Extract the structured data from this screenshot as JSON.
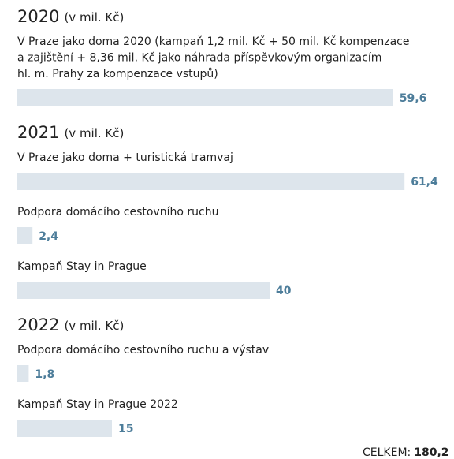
{
  "sections": [
    {
      "year": "2020",
      "unit": "(v mil. Kč)",
      "items": [
        {
          "lines": [
            "V Praze jako doma 2020 (kampaň 1,2 mil. Kč + 50 mil. Kč kompenzace",
            "a zajištění + 8,36 mil. Kč jako náhrada příspěvkovým organizacím",
            "hl. m. Prahy za kompenzace vstupů)"
          ],
          "value": 59.6,
          "value_label": "59,6"
        }
      ]
    },
    {
      "year": "2021",
      "unit": "(v mil. Kč)",
      "items": [
        {
          "lines": [
            "V Praze jako doma + turistická tramvaj"
          ],
          "value": 61.4,
          "value_label": "61,4"
        },
        {
          "lines": [
            "Podpora domácího cestovního ruchu"
          ],
          "value": 2.4,
          "value_label": "2,4"
        },
        {
          "lines": [
            "Kampaň Stay in Prague"
          ],
          "value": 40,
          "value_label": "40"
        }
      ]
    },
    {
      "year": "2022",
      "unit": "(v mil. Kč)",
      "items": [
        {
          "lines": [
            "Podpora domácího cestovního ruchu a výstav"
          ],
          "value": 1.8,
          "value_label": "1,8"
        },
        {
          "lines": [
            "Kampaň Stay in Prague 2022"
          ],
          "value": 15,
          "value_label": "15"
        }
      ]
    }
  ],
  "total": {
    "label": "CELKEM:",
    "value": 180.2,
    "value_label": "180,2"
  },
  "bar_color": "#dde5ec",
  "value_color": "#4d7d9a"
}
